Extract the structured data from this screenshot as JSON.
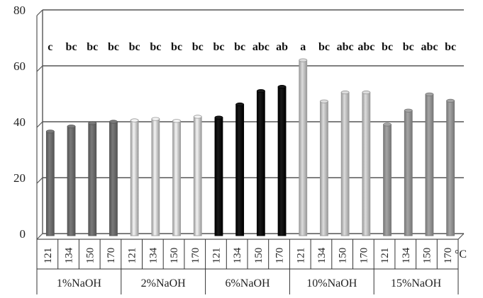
{
  "chart_data": {
    "type": "bar",
    "title": "",
    "xlabel": "",
    "ylabel": "",
    "ylim": [
      0,
      80
    ],
    "yticks": [
      0,
      20,
      40,
      60,
      80
    ],
    "grid": true,
    "x_unit": "°C",
    "groups": [
      {
        "name": "1%NaOH",
        "color": "#7a7a7a",
        "edge": "#555555",
        "temperatures": [
          "121",
          "134",
          "150",
          "170"
        ],
        "values": [
          36.5,
          38.3,
          39.5,
          40.0
        ],
        "letters": [
          "c",
          "bc",
          "bc",
          "bc"
        ]
      },
      {
        "name": "2%NaOH",
        "color": "#f4f4f4",
        "edge": "#9a9a9a",
        "temperatures": [
          "121",
          "134",
          "150",
          "170"
        ],
        "values": [
          40.5,
          41.0,
          40.3,
          41.8
        ],
        "letters": [
          "bc",
          "bc",
          "bc",
          "bc"
        ]
      },
      {
        "name": "6%NaOH",
        "color": "#1a1a1a",
        "edge": "#000000",
        "temperatures": [
          "121",
          "134",
          "150",
          "170"
        ],
        "values": [
          41.5,
          46.2,
          51.0,
          52.5
        ],
        "letters": [
          "bc",
          "bc",
          "abc",
          "ab"
        ]
      },
      {
        "name": "10%NaOH",
        "color": "#dcdcdc",
        "edge": "#999999",
        "temperatures": [
          "121",
          "134",
          "150",
          "170"
        ],
        "values": [
          62.0,
          47.3,
          50.5,
          50.5
        ],
        "letters": [
          "a",
          "bc",
          "abc",
          "abc"
        ]
      },
      {
        "name": "15%NaOH",
        "color": "#a5a5a5",
        "edge": "#777777",
        "temperatures": [
          "121",
          "134",
          "150",
          "170"
        ],
        "values": [
          39.0,
          44.0,
          49.8,
          47.5
        ],
        "letters": [
          "bc",
          "bc",
          "abc",
          "bc"
        ]
      }
    ]
  }
}
